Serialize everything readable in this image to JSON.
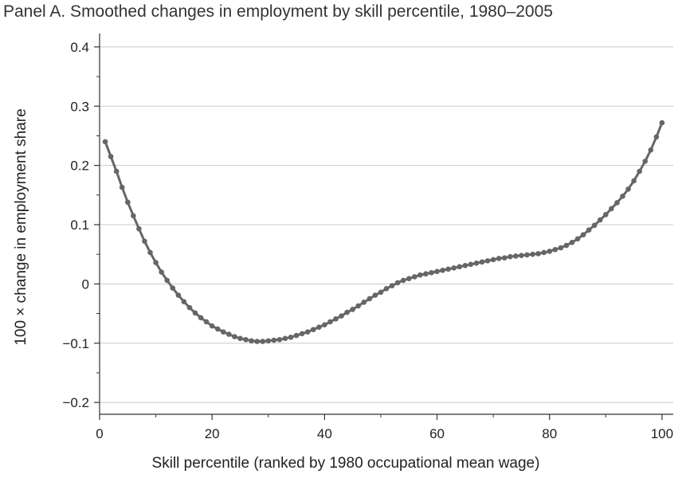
{
  "chart_data": {
    "type": "line",
    "title": "Panel A. Smoothed changes in employment by skill percentile, 1980–2005",
    "xlabel": "Skill percentile (ranked by 1980 occupational mean wage)",
    "ylabel": "100 × change in employment share",
    "xlim": [
      0,
      102
    ],
    "ylim": [
      -0.22,
      0.42
    ],
    "xticks": [
      0,
      20,
      40,
      60,
      80,
      100
    ],
    "xtick_labels": [
      "0",
      "20",
      "40",
      "60",
      "80",
      "100"
    ],
    "yticks": [
      -0.2,
      -0.1,
      0,
      0.1,
      0.2,
      0.3,
      0.4
    ],
    "ytick_labels": [
      "−0.2",
      "−0.1",
      "0",
      "0.1",
      "0.2",
      "0.3",
      "0.4"
    ],
    "grid": "horizontal",
    "line_color": "#666666",
    "x": [
      1,
      2,
      3,
      4,
      5,
      6,
      7,
      8,
      9,
      10,
      11,
      12,
      13,
      14,
      15,
      16,
      17,
      18,
      19,
      20,
      21,
      22,
      23,
      24,
      25,
      26,
      27,
      28,
      29,
      30,
      31,
      32,
      33,
      34,
      35,
      36,
      37,
      38,
      39,
      40,
      41,
      42,
      43,
      44,
      45,
      46,
      47,
      48,
      49,
      50,
      51,
      52,
      53,
      54,
      55,
      56,
      57,
      58,
      59,
      60,
      61,
      62,
      63,
      64,
      65,
      66,
      67,
      68,
      69,
      70,
      71,
      72,
      73,
      74,
      75,
      76,
      77,
      78,
      79,
      80,
      81,
      82,
      83,
      84,
      85,
      86,
      87,
      88,
      89,
      90,
      91,
      92,
      93,
      94,
      95,
      96,
      97,
      98,
      99,
      100
    ],
    "values": [
      0.24,
      0.215,
      0.19,
      0.163,
      0.138,
      0.115,
      0.093,
      0.072,
      0.053,
      0.036,
      0.02,
      0.006,
      -0.007,
      -0.019,
      -0.03,
      -0.04,
      -0.049,
      -0.057,
      -0.064,
      -0.071,
      -0.076,
      -0.081,
      -0.085,
      -0.089,
      -0.092,
      -0.094,
      -0.096,
      -0.097,
      -0.097,
      -0.096,
      -0.095,
      -0.094,
      -0.092,
      -0.09,
      -0.087,
      -0.084,
      -0.081,
      -0.077,
      -0.073,
      -0.069,
      -0.064,
      -0.059,
      -0.054,
      -0.048,
      -0.043,
      -0.037,
      -0.031,
      -0.025,
      -0.019,
      -0.014,
      -0.008,
      -0.003,
      0.002,
      0.006,
      0.009,
      0.012,
      0.015,
      0.017,
      0.019,
      0.021,
      0.023,
      0.025,
      0.027,
      0.029,
      0.031,
      0.033,
      0.035,
      0.037,
      0.039,
      0.041,
      0.043,
      0.044,
      0.046,
      0.047,
      0.048,
      0.049,
      0.05,
      0.051,
      0.053,
      0.055,
      0.058,
      0.061,
      0.065,
      0.07,
      0.076,
      0.083,
      0.091,
      0.099,
      0.108,
      0.117,
      0.127,
      0.137,
      0.148,
      0.16,
      0.174,
      0.19,
      0.207,
      0.226,
      0.248,
      0.272
    ]
  }
}
